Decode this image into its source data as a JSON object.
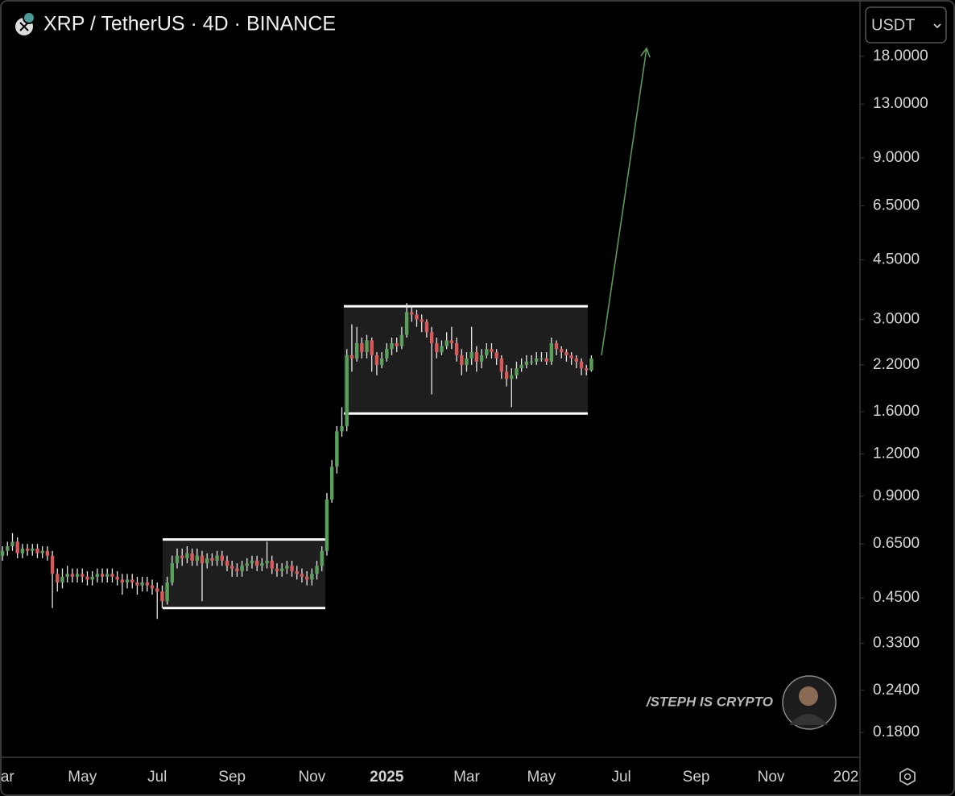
{
  "chart_data": {
    "type": "candlestick",
    "title": "XRP / TetherUS · 4D · BINANCE",
    "currency": "USDT",
    "watermark": "/STEPH IS CRYPTO",
    "log_scale": true,
    "up_color": "#5aa05c",
    "down_color": "#d9595b",
    "ylim": [
      0.152,
      26.4
    ],
    "yticks": [
      {
        "value": 18,
        "label": "18.0000"
      },
      {
        "value": 13,
        "label": "13.0000"
      },
      {
        "value": 9,
        "label": "9.0000"
      },
      {
        "value": 6.5,
        "label": "6.5000"
      },
      {
        "value": 4.5,
        "label": "4.5000"
      },
      {
        "value": 3,
        "label": "3.0000"
      },
      {
        "value": 2.2,
        "label": "2.2000"
      },
      {
        "value": 1.6,
        "label": "1.6000"
      },
      {
        "value": 1.2,
        "label": "1.2000"
      },
      {
        "value": 0.9,
        "label": "0.9000"
      },
      {
        "value": 0.65,
        "label": "0.6500"
      },
      {
        "value": 0.45,
        "label": "0.4500"
      },
      {
        "value": 0.33,
        "label": "0.3300"
      },
      {
        "value": 0.24,
        "label": "0.2400"
      },
      {
        "value": 0.18,
        "label": "0.1800"
      }
    ],
    "boxes": [
      {
        "low": 0.42,
        "high": 0.67
      },
      {
        "low": 1.58,
        "high": 3.28
      }
    ],
    "projection": {
      "from": 2.35,
      "to": 19
    },
    "categories": [
      null,
      "ar",
      null,
      null,
      null,
      null,
      null,
      null,
      null,
      null,
      null,
      null,
      null,
      null,
      null,
      null,
      "May",
      null,
      null,
      null,
      null,
      null,
      null,
      null,
      null,
      null,
      null,
      null,
      null,
      null,
      null,
      "Jul",
      null,
      null,
      null,
      null,
      null,
      null,
      null,
      null,
      null,
      null,
      null,
      null,
      null,
      null,
      "Sep",
      null,
      null,
      null,
      null,
      null,
      null,
      null,
      null,
      null,
      null,
      null,
      null,
      null,
      null,
      null,
      "Nov",
      null,
      null,
      null,
      null,
      null,
      null,
      null,
      null,
      null,
      null,
      null,
      null,
      null,
      null,
      "2025",
      null,
      null,
      null,
      null,
      null,
      null,
      null,
      null,
      null,
      null,
      null,
      null,
      null,
      null,
      null,
      "Mar",
      null,
      null,
      null,
      null,
      null,
      null,
      null,
      null,
      null,
      null,
      null,
      null,
      null,
      null,
      "May",
      null,
      null,
      null,
      null,
      null,
      null,
      null,
      null,
      null,
      null,
      null,
      null,
      null,
      null,
      null,
      "Jul",
      null,
      null,
      null,
      null,
      null,
      null,
      null,
      null,
      null,
      null,
      null,
      null,
      null,
      null,
      "Sep",
      null,
      null,
      null,
      null,
      null,
      null,
      null,
      null,
      null,
      null,
      null,
      null,
      null,
      null,
      "Nov",
      null,
      null,
      null,
      null,
      null,
      null,
      null,
      null,
      null,
      null,
      null,
      null,
      null,
      null,
      "202",
      null,
      null
    ],
    "open": [
      0.6,
      0.62,
      0.64,
      0.66,
      0.61,
      0.63,
      0.62,
      0.63,
      0.61,
      0.62,
      0.6,
      0.53,
      0.5,
      0.52,
      0.53,
      0.52,
      0.53,
      0.52,
      0.51,
      0.52,
      0.53,
      0.52,
      0.53,
      0.52,
      0.51,
      0.5,
      0.51,
      0.5,
      0.49,
      0.5,
      0.49,
      0.48,
      0.47,
      0.44,
      0.5,
      0.57,
      0.6,
      0.59,
      0.61,
      0.58,
      0.6,
      0.57,
      0.59,
      0.58,
      0.6,
      0.58,
      0.56,
      0.55,
      0.54,
      0.56,
      0.57,
      0.58,
      0.56,
      0.57,
      0.58,
      0.55,
      0.54,
      0.55,
      0.56,
      0.54,
      0.53,
      0.52,
      0.51,
      0.53,
      0.56,
      0.62,
      0.88,
      1.1,
      1.4,
      1.45,
      2.35,
      2.3,
      2.55,
      2.4,
      2.6,
      2.35,
      2.2,
      2.3,
      2.45,
      2.55,
      2.5,
      2.7,
      3.15,
      3.1,
      3.0,
      2.95,
      2.75,
      2.55,
      2.4,
      2.5,
      2.6,
      2.55,
      2.35,
      2.2,
      2.3,
      2.4,
      2.25,
      2.35,
      2.45,
      2.4,
      2.3,
      2.1,
      2.0,
      2.05,
      2.15,
      2.2,
      2.25,
      2.25,
      2.3,
      2.3,
      2.25,
      2.55,
      2.45,
      2.4,
      2.35,
      2.3,
      2.25,
      2.15,
      2.12,
      null,
      null,
      null,
      null,
      null,
      null,
      null,
      null,
      null,
      null,
      null,
      null,
      null,
      null,
      null,
      null,
      null,
      null,
      null,
      null,
      null,
      null,
      null,
      null,
      null,
      null,
      null,
      null,
      null,
      null,
      null,
      null,
      null,
      null,
      null,
      null,
      null,
      null,
      null,
      null,
      null,
      null,
      null,
      null,
      null,
      null,
      null,
      null,
      null,
      null,
      null,
      null,
      null
    ],
    "high": [
      0.64,
      0.66,
      0.7,
      0.68,
      0.65,
      0.65,
      0.65,
      0.65,
      0.64,
      0.64,
      0.62,
      0.55,
      0.55,
      0.56,
      0.55,
      0.55,
      0.55,
      0.54,
      0.54,
      0.55,
      0.55,
      0.55,
      0.55,
      0.54,
      0.53,
      0.53,
      0.53,
      0.52,
      0.52,
      0.52,
      0.51,
      0.5,
      0.49,
      0.52,
      0.6,
      0.63,
      0.63,
      0.64,
      0.63,
      0.63,
      0.62,
      0.61,
      0.61,
      0.62,
      0.62,
      0.6,
      0.58,
      0.57,
      0.58,
      0.59,
      0.6,
      0.6,
      0.59,
      0.66,
      0.6,
      0.57,
      0.57,
      0.58,
      0.58,
      0.56,
      0.55,
      0.54,
      0.55,
      0.58,
      0.64,
      0.92,
      1.15,
      1.45,
      1.65,
      2.45,
      2.9,
      2.85,
      2.65,
      2.7,
      2.65,
      2.4,
      2.4,
      2.55,
      2.65,
      2.65,
      2.85,
      3.35,
      3.3,
      3.2,
      3.1,
      3.0,
      2.85,
      2.65,
      2.6,
      2.75,
      2.85,
      2.65,
      2.45,
      2.4,
      2.85,
      2.5,
      2.45,
      2.55,
      2.55,
      2.45,
      2.35,
      2.2,
      2.15,
      2.25,
      2.3,
      2.35,
      2.35,
      2.4,
      2.4,
      2.4,
      2.65,
      2.6,
      2.5,
      2.45,
      2.4,
      2.35,
      2.3,
      2.2,
      2.35,
      null,
      null,
      null,
      null,
      null,
      null,
      null,
      null,
      null,
      null,
      null,
      null,
      null,
      null,
      null,
      null,
      null,
      null,
      null,
      null,
      null,
      null,
      null,
      null,
      null,
      null,
      null,
      null,
      null,
      null,
      null,
      null,
      null,
      null,
      null,
      null,
      null,
      null,
      null,
      null,
      null,
      null,
      null,
      null,
      null,
      null,
      null,
      null,
      null,
      null,
      null,
      null,
      null
    ],
    "low": [
      0.58,
      0.6,
      0.62,
      0.59,
      0.59,
      0.6,
      0.6,
      0.59,
      0.59,
      0.58,
      0.42,
      0.47,
      0.48,
      0.5,
      0.5,
      0.5,
      0.5,
      0.49,
      0.49,
      0.5,
      0.5,
      0.5,
      0.5,
      0.49,
      0.46,
      0.48,
      0.48,
      0.46,
      0.47,
      0.47,
      0.46,
      0.39,
      0.42,
      0.43,
      0.49,
      0.55,
      0.56,
      0.57,
      0.56,
      0.56,
      0.44,
      0.55,
      0.56,
      0.56,
      0.56,
      0.54,
      0.52,
      0.52,
      0.52,
      0.54,
      0.55,
      0.54,
      0.54,
      0.55,
      0.53,
      0.52,
      0.52,
      0.53,
      0.52,
      0.51,
      0.5,
      0.49,
      0.49,
      0.51,
      0.54,
      0.6,
      0.86,
      1.05,
      1.35,
      1.4,
      2.1,
      2.25,
      2.3,
      2.3,
      2.1,
      2.05,
      2.15,
      2.25,
      2.35,
      2.4,
      2.45,
      2.65,
      2.95,
      2.85,
      2.75,
      2.65,
      1.8,
      2.3,
      2.35,
      2.45,
      2.45,
      2.25,
      2.05,
      2.1,
      2.2,
      2.1,
      2.15,
      2.3,
      2.3,
      2.2,
      2.0,
      1.9,
      1.65,
      2.0,
      2.1,
      2.15,
      2.2,
      2.2,
      2.25,
      2.2,
      2.2,
      2.35,
      2.3,
      2.25,
      2.2,
      2.15,
      2.05,
      2.05,
      2.1,
      null,
      null,
      null,
      null,
      null,
      null,
      null,
      null,
      null,
      null,
      null,
      null,
      null,
      null,
      null,
      null,
      null,
      null,
      null,
      null,
      null,
      null,
      null,
      null,
      null,
      null,
      null,
      null,
      null,
      null,
      null,
      null,
      null,
      null,
      null,
      null,
      null,
      null,
      null,
      null,
      null,
      null,
      null,
      null,
      null,
      null,
      null,
      null,
      null,
      null,
      null,
      null,
      null
    ],
    "close": [
      0.62,
      0.64,
      0.66,
      0.61,
      0.63,
      0.62,
      0.63,
      0.61,
      0.62,
      0.6,
      0.53,
      0.5,
      0.52,
      0.53,
      0.52,
      0.53,
      0.52,
      0.51,
      0.52,
      0.53,
      0.52,
      0.53,
      0.52,
      0.51,
      0.5,
      0.51,
      0.5,
      0.49,
      0.5,
      0.49,
      0.48,
      0.47,
      0.44,
      0.5,
      0.57,
      0.6,
      0.59,
      0.61,
      0.58,
      0.6,
      0.57,
      0.59,
      0.58,
      0.6,
      0.58,
      0.56,
      0.55,
      0.54,
      0.56,
      0.57,
      0.58,
      0.56,
      0.57,
      0.58,
      0.55,
      0.54,
      0.55,
      0.56,
      0.54,
      0.53,
      0.52,
      0.51,
      0.53,
      0.56,
      0.62,
      0.88,
      1.1,
      1.4,
      1.45,
      2.35,
      2.3,
      2.55,
      2.4,
      2.6,
      2.35,
      2.2,
      2.3,
      2.45,
      2.55,
      2.5,
      2.7,
      3.15,
      3.1,
      3.0,
      2.95,
      2.75,
      2.55,
      2.4,
      2.5,
      2.6,
      2.55,
      2.35,
      2.2,
      2.3,
      2.4,
      2.25,
      2.35,
      2.45,
      2.4,
      2.3,
      2.1,
      2.0,
      2.05,
      2.15,
      2.2,
      2.25,
      2.25,
      2.3,
      2.3,
      2.25,
      2.55,
      2.45,
      2.4,
      2.35,
      2.3,
      2.25,
      2.15,
      2.12,
      2.3,
      null,
      null,
      null,
      null,
      null,
      null,
      null,
      null,
      null,
      null,
      null,
      null,
      null,
      null,
      null,
      null,
      null,
      null,
      null,
      null,
      null,
      null,
      null,
      null,
      null,
      null,
      null,
      null,
      null,
      null,
      null,
      null,
      null,
      null,
      null,
      null,
      null,
      null,
      null,
      null,
      null,
      null,
      null,
      null,
      null,
      null,
      null,
      null,
      null,
      null,
      null,
      null,
      null
    ]
  }
}
